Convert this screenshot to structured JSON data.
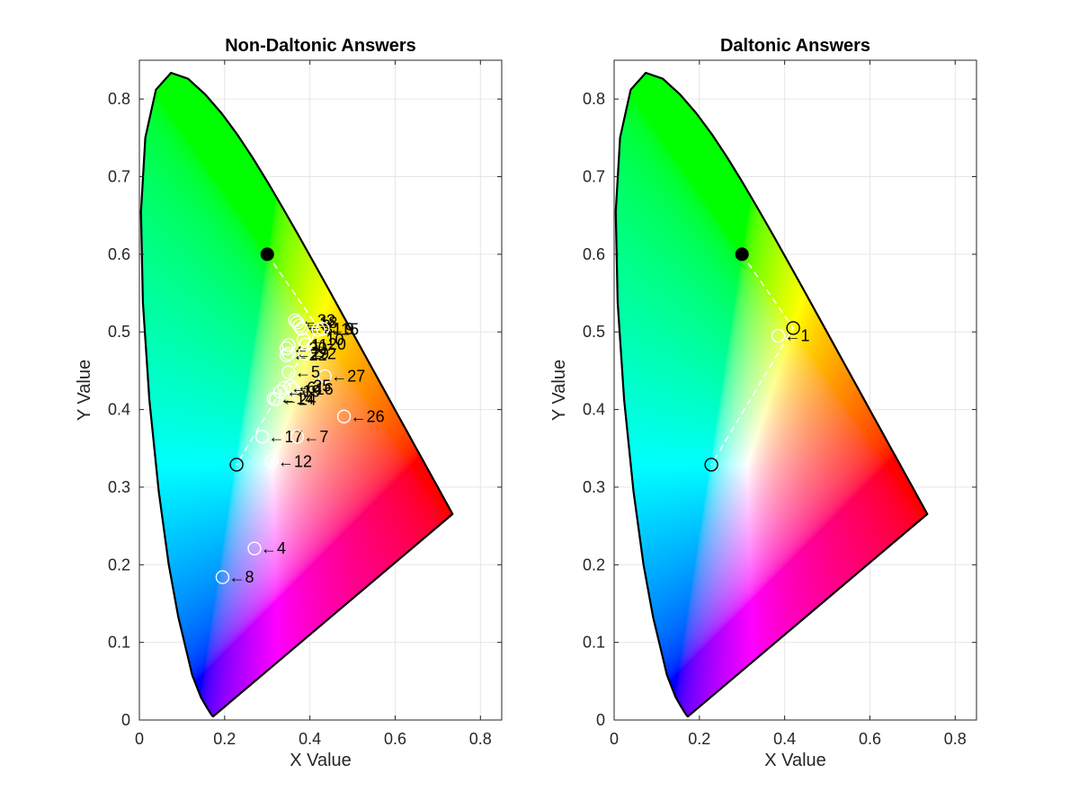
{
  "chart_data": [
    {
      "type": "scatter",
      "title": "Non-Daltonic Answers",
      "xlabel": "X Value",
      "ylabel": "Y Value",
      "xlim": [
        0,
        0.85
      ],
      "ylim": [
        0,
        0.85
      ],
      "xticks": [
        "0",
        "0.2",
        "0.4",
        "0.6",
        "0.8"
      ],
      "yticks": [
        "0",
        "0.1",
        "0.2",
        "0.3",
        "0.4",
        "0.5",
        "0.6",
        "0.7",
        "0.8"
      ],
      "grid": true,
      "background": "CIE 1931 chromaticity diagram",
      "reference_points": [
        {
          "x": 0.3,
          "y": 0.6,
          "style": "filled-black"
        },
        {
          "x": 0.228,
          "y": 0.329,
          "style": "open-black"
        }
      ],
      "reference_line": {
        "from": [
          0.3,
          0.6
        ],
        "to": [
          0.228,
          0.329
        ],
        "via": [
          0.42,
          0.505
        ]
      },
      "series": [
        {
          "points": [
            {
              "label": "33",
              "x": 0.365,
              "y": 0.515
            },
            {
              "label": "18",
              "x": 0.37,
              "y": 0.512
            },
            {
              "label": "3",
              "x": 0.375,
              "y": 0.508
            },
            {
              "label": "31",
              "x": 0.38,
              "y": 0.504
            },
            {
              "label": "15",
              "x": 0.42,
              "y": 0.503
            },
            {
              "label": "9",
              "x": 0.43,
              "y": 0.504
            },
            {
              "label": "10",
              "x": 0.385,
              "y": 0.49
            },
            {
              "label": "20",
              "x": 0.39,
              "y": 0.484
            },
            {
              "label": "11",
              "x": 0.35,
              "y": 0.483
            },
            {
              "label": "30",
              "x": 0.345,
              "y": 0.479
            },
            {
              "label": "29",
              "x": 0.35,
              "y": 0.472
            },
            {
              "label": "22",
              "x": 0.345,
              "y": 0.47
            },
            {
              "label": "2",
              "x": 0.388,
              "y": 0.472
            },
            {
              "label": "27",
              "x": 0.435,
              "y": 0.443
            },
            {
              "label": "5",
              "x": 0.35,
              "y": 0.448
            },
            {
              "label": "25",
              "x": 0.355,
              "y": 0.43
            },
            {
              "label": "16",
              "x": 0.36,
              "y": 0.426
            },
            {
              "label": "6",
              "x": 0.34,
              "y": 0.428
            },
            {
              "label": "19",
              "x": 0.33,
              "y": 0.423
            },
            {
              "label": "14",
              "x": 0.315,
              "y": 0.414
            },
            {
              "label": "24",
              "x": 0.32,
              "y": 0.413
            },
            {
              "label": "26",
              "x": 0.48,
              "y": 0.391
            },
            {
              "label": "17",
              "x": 0.288,
              "y": 0.365
            },
            {
              "label": "7",
              "x": 0.37,
              "y": 0.365
            },
            {
              "label": "12",
              "x": 0.31,
              "y": 0.333
            },
            {
              "label": "4",
              "x": 0.27,
              "y": 0.221
            },
            {
              "label": "8",
              "x": 0.195,
              "y": 0.184
            }
          ]
        }
      ]
    },
    {
      "type": "scatter",
      "title": "Daltonic Answers",
      "xlabel": "X Value",
      "ylabel": "Y Value",
      "xlim": [
        0,
        0.85
      ],
      "ylim": [
        0,
        0.85
      ],
      "xticks": [
        "0",
        "0.2",
        "0.4",
        "0.6",
        "0.8"
      ],
      "yticks": [
        "0",
        "0.1",
        "0.2",
        "0.3",
        "0.4",
        "0.5",
        "0.6",
        "0.7",
        "0.8"
      ],
      "grid": true,
      "background": "CIE 1931 chromaticity diagram",
      "reference_points": [
        {
          "x": 0.3,
          "y": 0.6,
          "style": "filled-black"
        },
        {
          "x": 0.42,
          "y": 0.505,
          "style": "open-black"
        },
        {
          "x": 0.228,
          "y": 0.329,
          "style": "open-black"
        }
      ],
      "reference_line": {
        "from": [
          0.3,
          0.6
        ],
        "to": [
          0.228,
          0.329
        ],
        "via": [
          0.42,
          0.505
        ]
      },
      "series": [
        {
          "points": [
            {
              "label": "1",
              "x": 0.385,
              "y": 0.495
            }
          ]
        }
      ]
    }
  ]
}
